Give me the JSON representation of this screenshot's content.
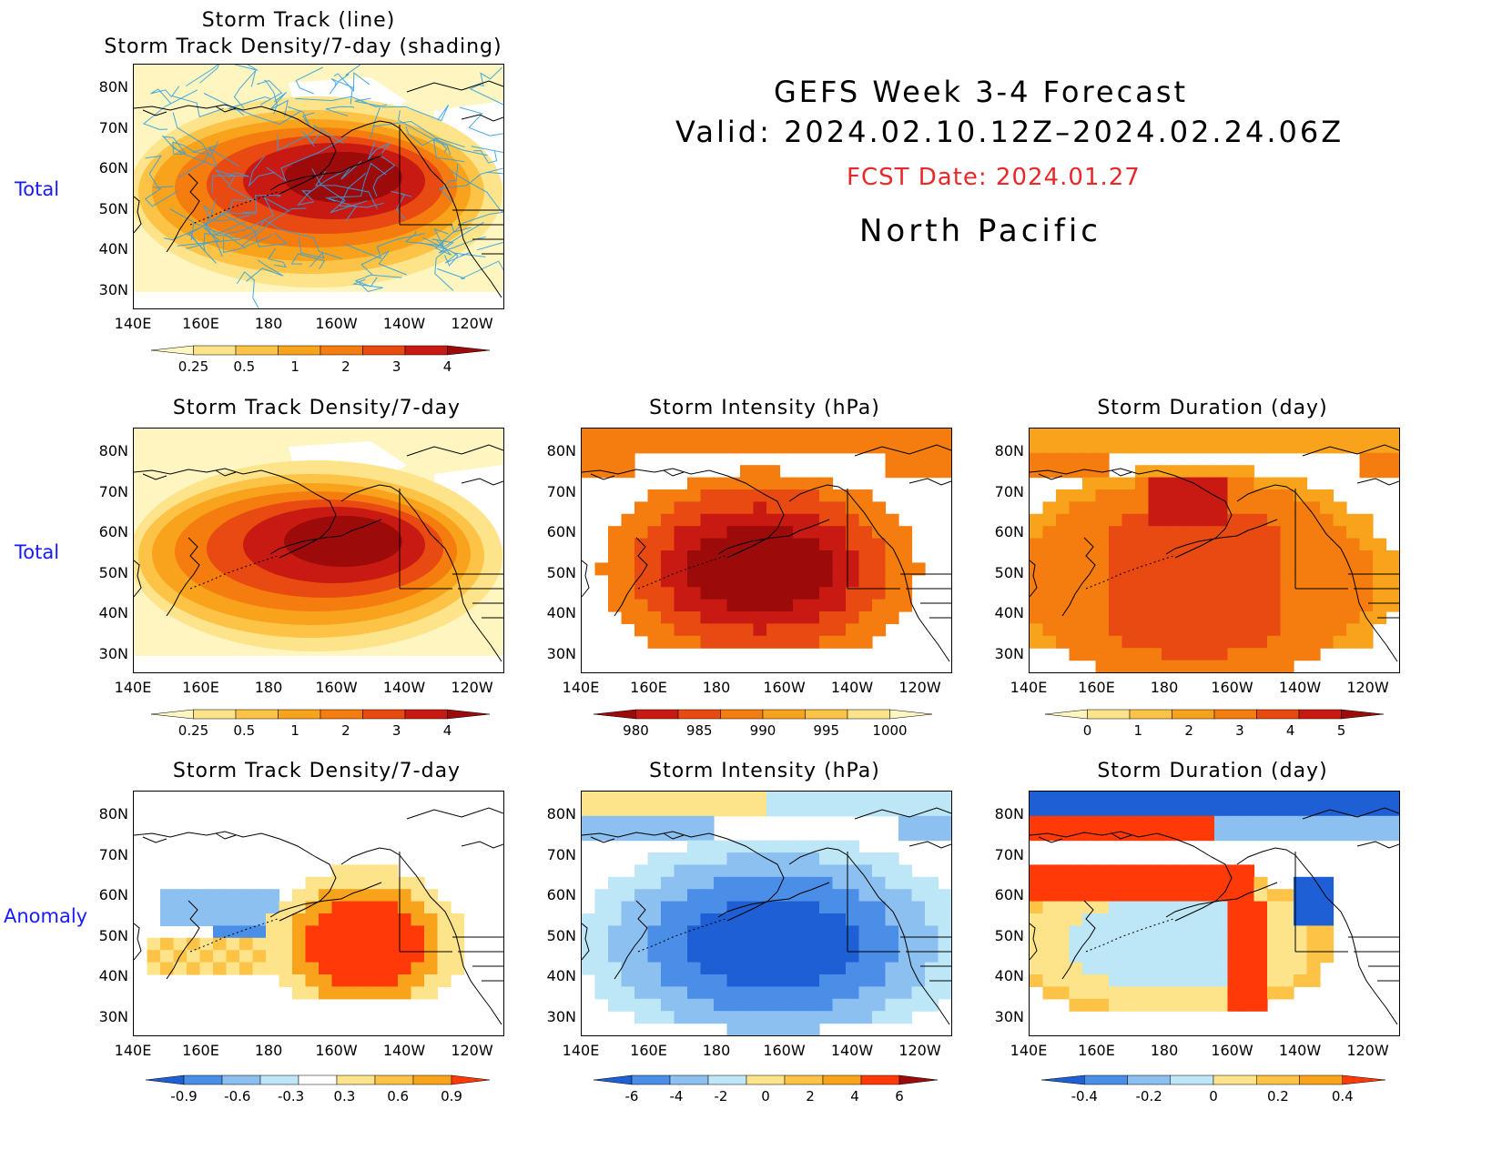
{
  "header": {
    "title": "GEFS Week 3-4 Forecast",
    "valid": "Valid: 2024.02.10.12Z–2024.02.24.06Z",
    "fcst_date": "FCST Date: 2024.01.27",
    "region": "North Pacific"
  },
  "row_labels": {
    "top": "Total",
    "middle": "Total",
    "bottom": "Anomaly"
  },
  "axes": {
    "lat_labels": [
      "80N",
      "70N",
      "60N",
      "50N",
      "40N",
      "30N"
    ],
    "lon_labels": [
      "140E",
      "160E",
      "180",
      "160W",
      "140W",
      "120W"
    ]
  },
  "panels": {
    "p1": {
      "title1": "Storm Track (line)",
      "title2": "Storm Track Density/7-day (shading)",
      "ticks": [
        "0.25",
        "0.5",
        "1",
        "2",
        "3",
        "4"
      ]
    },
    "p2": {
      "title": "Storm Track Density/7-day",
      "ticks": [
        "0.25",
        "0.5",
        "1",
        "2",
        "3",
        "4"
      ]
    },
    "p3": {
      "title": "Storm Intensity (hPa)",
      "ticks": [
        "980",
        "985",
        "990",
        "995",
        "1000"
      ]
    },
    "p4": {
      "title": "Storm Duration (day)",
      "ticks": [
        "0",
        "1",
        "2",
        "3",
        "4",
        "5"
      ]
    },
    "p5": {
      "title": "Storm Track Density/7-day",
      "ticks": [
        "-0.9",
        "-0.6",
        "-0.3",
        "0.3",
        "0.6",
        "0.9"
      ]
    },
    "p6": {
      "title": "Storm Intensity (hPa)",
      "ticks": [
        "-6",
        "-4",
        "-2",
        "0",
        "2",
        "4",
        "6"
      ]
    },
    "p7": {
      "title": "Storm Duration (day)",
      "ticks": [
        "-0.4",
        "-0.2",
        "0",
        "0.2",
        "0.4"
      ]
    }
  },
  "colors": {
    "warm": [
      "#fff5c0",
      "#fde38a",
      "#fcc346",
      "#f9a21b",
      "#f57c0e",
      "#e84a12",
      "#c81a12",
      "#9c0a0a"
    ],
    "cool": [
      "#1f5fd6",
      "#4a8ee8",
      "#8cc0f0",
      "#bde6f6"
    ],
    "track_line": "#33a0e0"
  }
}
